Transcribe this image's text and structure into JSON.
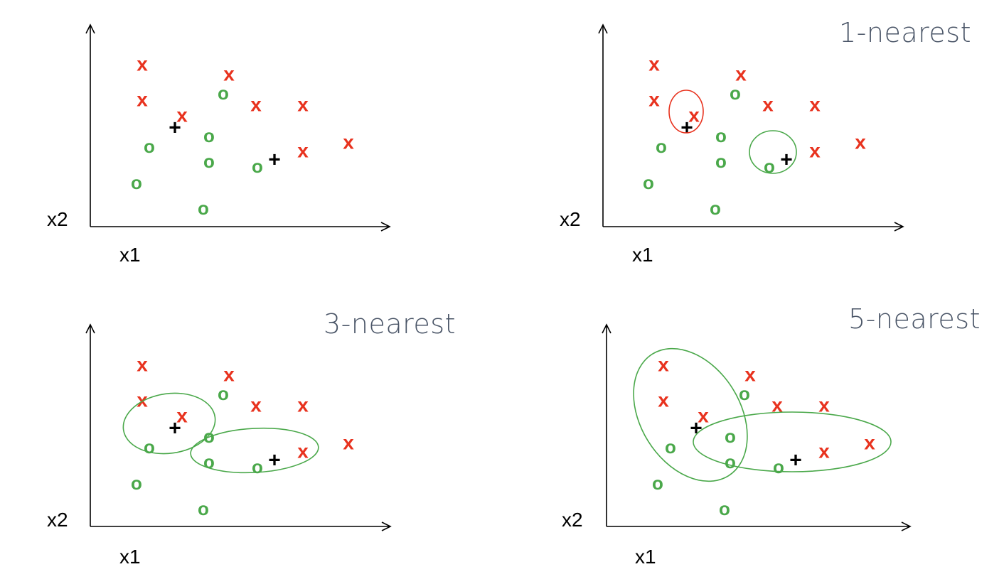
{
  "colors": {
    "x_class": "#e8321e",
    "o_class": "#4aa84a",
    "query": "#000000",
    "axis": "#000000"
  },
  "axis_labels": {
    "x": "x1",
    "y": "x2"
  },
  "markers": {
    "x": "x",
    "o": "o",
    "query": "+"
  },
  "panels": [
    {
      "id": "plain",
      "title": "",
      "circle_color": ""
    },
    {
      "id": "k1",
      "title": "1-nearest"
    },
    {
      "id": "k3",
      "title": "3-nearest"
    },
    {
      "id": "k5",
      "title": "5-nearest"
    }
  ]
}
